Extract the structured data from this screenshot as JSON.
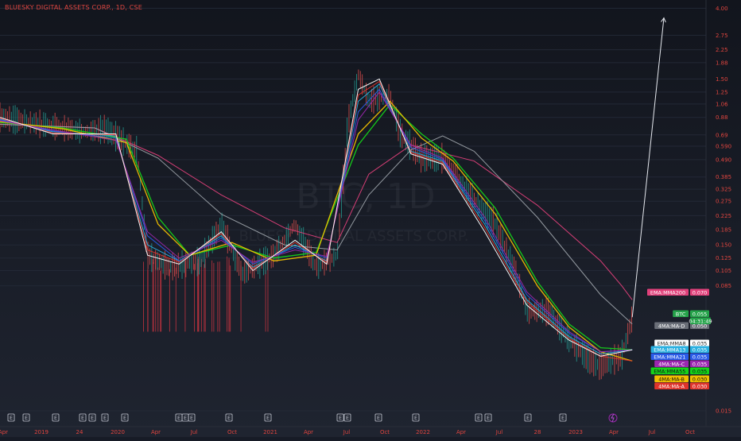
{
  "header": {
    "title": "BLUESKY DIGITAL ASSETS CORP., 1D, CSE"
  },
  "watermark": {
    "symbol": "BTC, 1D",
    "name": "BLUESKY DIGITAL ASSETS CORP."
  },
  "colors": {
    "background": "#171b26",
    "axis_text": "#e0453f",
    "ema8": "#ffffff",
    "ema13": "#2ab0e0",
    "ema21": "#2a5be8",
    "ma_c": "#9c27b0",
    "ema55": "#15d21a",
    "ma_b": "#f0c000",
    "ma_a": "#e0342c",
    "ema200": "#e0407a",
    "ma_d": "#9aa0a6",
    "price": "#25a34a",
    "projection": "#e6e9ef"
  },
  "chart_data": {
    "type": "line",
    "title": "BLUESKY DIGITAL ASSETS CORP., 1D, CSE",
    "y_scale": "log",
    "ylim": [
      0.013,
      4.2
    ],
    "y_ticks": [
      "4.00",
      "2.75",
      "2.25",
      "1.88",
      "1.50",
      "1.25",
      "1.06",
      "0.88",
      "0.69",
      "0.590",
      "0.490",
      "0.385",
      "0.325",
      "0.275",
      "0.225",
      "0.185",
      "0.150",
      "0.125",
      "0.105",
      "0.085",
      "0.015"
    ],
    "x_ticks": [
      "Apr",
      "2019",
      "Jul",
      "2020",
      "Apr",
      "Jul",
      "Oct",
      "2021",
      "Apr",
      "Jul",
      "Oct",
      "2022",
      "Apr",
      "Jul",
      "Oct",
      "2023",
      "Apr",
      "Jul",
      "Oct"
    ],
    "x_ticks_shown": [
      "Apr",
      "2019",
      "24",
      "2020",
      "Apr",
      "Jul",
      "Oct",
      "2021",
      "Apr",
      "Jul",
      "Oct",
      "2022",
      "Apr",
      "Jul",
      "28",
      "2023",
      "Apr",
      "Jul",
      "Oct"
    ],
    "x_range": [
      "2018-04",
      "2023-11"
    ],
    "series": [
      {
        "name": "EMA:MMA200",
        "value": "0.070",
        "key": "ema200",
        "points": [
          [
            "2018-04",
            0.8
          ],
          [
            "2019-01",
            0.76
          ],
          [
            "2019-07",
            0.52
          ],
          [
            "2020-01",
            0.3
          ],
          [
            "2020-07",
            0.19
          ],
          [
            "2020-12",
            0.155
          ],
          [
            "2021-03",
            0.4
          ],
          [
            "2021-07",
            0.6
          ],
          [
            "2022-01",
            0.48
          ],
          [
            "2022-07",
            0.26
          ],
          [
            "2023-01",
            0.12
          ],
          [
            "2023-03",
            0.085
          ],
          [
            "2023-04",
            0.07
          ]
        ]
      },
      {
        "name": "4MA:MA-D",
        "value": "0.050",
        "key": "ma_d",
        "points": [
          [
            "2018-04",
            0.8
          ],
          [
            "2019-01",
            0.76
          ],
          [
            "2019-07",
            0.5
          ],
          [
            "2020-01",
            0.23
          ],
          [
            "2020-07",
            0.15
          ],
          [
            "2020-12",
            0.14
          ],
          [
            "2021-03",
            0.3
          ],
          [
            "2021-07",
            0.56
          ],
          [
            "2021-10",
            0.68
          ],
          [
            "2022-01",
            0.55
          ],
          [
            "2022-07",
            0.22
          ],
          [
            "2023-01",
            0.075
          ],
          [
            "2023-04",
            0.05
          ]
        ]
      },
      {
        "name": "EMA:MMA55",
        "value": "0.035",
        "key": "ema55",
        "points": [
          [
            "2018-04",
            0.82
          ],
          [
            "2018-10",
            0.76
          ],
          [
            "2019-04",
            0.65
          ],
          [
            "2019-07",
            0.22
          ],
          [
            "2019-10",
            0.13
          ],
          [
            "2020-02",
            0.15
          ],
          [
            "2020-06",
            0.125
          ],
          [
            "2020-10",
            0.135
          ],
          [
            "2021-02",
            0.6
          ],
          [
            "2021-05",
            1.05
          ],
          [
            "2021-08",
            0.7
          ],
          [
            "2021-11",
            0.5
          ],
          [
            "2022-03",
            0.25
          ],
          [
            "2022-07",
            0.09
          ],
          [
            "2022-10",
            0.05
          ],
          [
            "2023-01",
            0.036
          ],
          [
            "2023-04",
            0.035
          ]
        ]
      },
      {
        "name": "4MA:MA-B",
        "value": "0.030",
        "key": "ma_b",
        "points": [
          [
            "2018-04",
            0.83
          ],
          [
            "2018-10",
            0.75
          ],
          [
            "2019-04",
            0.62
          ],
          [
            "2019-07",
            0.2
          ],
          [
            "2019-10",
            0.13
          ],
          [
            "2020-02",
            0.155
          ],
          [
            "2020-06",
            0.12
          ],
          [
            "2020-10",
            0.13
          ],
          [
            "2021-02",
            0.7
          ],
          [
            "2021-05",
            1.1
          ],
          [
            "2021-08",
            0.66
          ],
          [
            "2021-11",
            0.48
          ],
          [
            "2022-03",
            0.23
          ],
          [
            "2022-07",
            0.085
          ],
          [
            "2022-10",
            0.048
          ],
          [
            "2023-01",
            0.034
          ],
          [
            "2023-04",
            0.03
          ]
        ]
      },
      {
        "name": "EMA:MMA13",
        "value": "0.035",
        "key": "ema13",
        "points": [
          [
            "2018-04",
            0.86
          ],
          [
            "2018-09",
            0.72
          ],
          [
            "2019-03",
            0.68
          ],
          [
            "2019-06",
            0.15
          ],
          [
            "2019-09",
            0.12
          ],
          [
            "2020-01",
            0.17
          ],
          [
            "2020-04",
            0.11
          ],
          [
            "2020-08",
            0.15
          ],
          [
            "2020-11",
            0.12
          ],
          [
            "2021-02",
            1.1
          ],
          [
            "2021-04",
            1.4
          ],
          [
            "2021-07",
            0.55
          ],
          [
            "2021-10",
            0.48
          ],
          [
            "2022-02",
            0.2
          ],
          [
            "2022-06",
            0.07
          ],
          [
            "2022-10",
            0.042
          ],
          [
            "2023-01",
            0.033
          ],
          [
            "2023-04",
            0.035
          ]
        ]
      },
      {
        "name": "EMA:MMA21",
        "value": "0.035",
        "key": "ema21",
        "points": [
          [
            "2018-04",
            0.85
          ],
          [
            "2018-09",
            0.73
          ],
          [
            "2019-03",
            0.66
          ],
          [
            "2019-06",
            0.17
          ],
          [
            "2019-09",
            0.12
          ],
          [
            "2020-01",
            0.165
          ],
          [
            "2020-04",
            0.115
          ],
          [
            "2020-08",
            0.145
          ],
          [
            "2020-11",
            0.125
          ],
          [
            "2021-02",
            0.95
          ],
          [
            "2021-04",
            1.3
          ],
          [
            "2021-07",
            0.58
          ],
          [
            "2021-10",
            0.49
          ],
          [
            "2022-02",
            0.21
          ],
          [
            "2022-06",
            0.075
          ],
          [
            "2022-10",
            0.044
          ],
          [
            "2023-01",
            0.034
          ],
          [
            "2023-04",
            0.035
          ]
        ]
      },
      {
        "name": "4MA:MA-C",
        "value": "0.035",
        "key": "ma_c",
        "points": [
          [
            "2018-04",
            0.84
          ],
          [
            "2018-09",
            0.74
          ],
          [
            "2019-03",
            0.64
          ],
          [
            "2019-06",
            0.18
          ],
          [
            "2019-09",
            0.125
          ],
          [
            "2020-01",
            0.16
          ],
          [
            "2020-04",
            0.118
          ],
          [
            "2020-08",
            0.14
          ],
          [
            "2020-11",
            0.128
          ],
          [
            "2021-02",
            0.85
          ],
          [
            "2021-04",
            1.25
          ],
          [
            "2021-07",
            0.6
          ],
          [
            "2021-10",
            0.5
          ],
          [
            "2022-02",
            0.22
          ],
          [
            "2022-06",
            0.078
          ],
          [
            "2022-10",
            0.045
          ],
          [
            "2023-01",
            0.034
          ],
          [
            "2023-04",
            0.035
          ]
        ]
      },
      {
        "name": "4MA:MA-A",
        "value": "0.030",
        "key": "ma_a",
        "points": [
          [
            "2018-04",
            0.87
          ],
          [
            "2018-09",
            0.71
          ],
          [
            "2019-03",
            0.69
          ],
          [
            "2019-06",
            0.14
          ],
          [
            "2019-09",
            0.118
          ],
          [
            "2020-01",
            0.175
          ],
          [
            "2020-04",
            0.108
          ],
          [
            "2020-08",
            0.155
          ],
          [
            "2020-11",
            0.118
          ],
          [
            "2021-02",
            1.2
          ],
          [
            "2021-04",
            1.45
          ],
          [
            "2021-07",
            0.54
          ],
          [
            "2021-10",
            0.47
          ],
          [
            "2022-02",
            0.19
          ],
          [
            "2022-06",
            0.068
          ],
          [
            "2022-10",
            0.041
          ],
          [
            "2023-01",
            0.032
          ],
          [
            "2023-04",
            0.03
          ]
        ]
      },
      {
        "name": "EMA:MMA8",
        "value": "0.035",
        "key": "ema8",
        "points": [
          [
            "2018-04",
            0.88
          ],
          [
            "2018-09",
            0.7
          ],
          [
            "2019-03",
            0.7
          ],
          [
            "2019-06",
            0.13
          ],
          [
            "2019-09",
            0.115
          ],
          [
            "2020-01",
            0.18
          ],
          [
            "2020-04",
            0.105
          ],
          [
            "2020-08",
            0.16
          ],
          [
            "2020-11",
            0.115
          ],
          [
            "2021-02",
            1.3
          ],
          [
            "2021-04",
            1.5
          ],
          [
            "2021-07",
            0.53
          ],
          [
            "2021-10",
            0.46
          ],
          [
            "2022-02",
            0.18
          ],
          [
            "2022-06",
            0.065
          ],
          [
            "2022-10",
            0.04
          ],
          [
            "2023-01",
            0.032
          ],
          [
            "2023-04",
            0.035
          ]
        ]
      }
    ],
    "price": {
      "name": "BTC",
      "last": "0.055",
      "countdown": "04:31:49",
      "points": [
        [
          "2018-04",
          0.88
        ],
        [
          "2018-08",
          0.8
        ],
        [
          "2018-12",
          0.72
        ],
        [
          "2019-02",
          0.75
        ],
        [
          "2019-05",
          0.55
        ],
        [
          "2019-06",
          0.13
        ],
        [
          "2019-08",
          0.11
        ],
        [
          "2019-11",
          0.12
        ],
        [
          "2020-01",
          0.2
        ],
        [
          "2020-03",
          0.1
        ],
        [
          "2020-06",
          0.13
        ],
        [
          "2020-08",
          0.2
        ],
        [
          "2020-10",
          0.11
        ],
        [
          "2020-12",
          0.13
        ],
        [
          "2021-01",
          0.8
        ],
        [
          "2021-02",
          1.6
        ],
        [
          "2021-03",
          1.1
        ],
        [
          "2021-05",
          1.2
        ],
        [
          "2021-06",
          0.7
        ],
        [
          "2021-08",
          0.5
        ],
        [
          "2021-10",
          0.5
        ],
        [
          "2021-11",
          0.42
        ],
        [
          "2022-01",
          0.28
        ],
        [
          "2022-03",
          0.2
        ],
        [
          "2022-05",
          0.1
        ],
        [
          "2022-06",
          0.06
        ],
        [
          "2022-08",
          0.06
        ],
        [
          "2022-10",
          0.04
        ],
        [
          "2022-12",
          0.03
        ],
        [
          "2023-01",
          0.028
        ],
        [
          "2023-03",
          0.032
        ],
        [
          "2023-04",
          0.055
        ]
      ]
    },
    "projection": {
      "from": [
        "2023-04",
        0.055
      ],
      "to": [
        "2023-07",
        3.5
      ]
    },
    "volume_spike_zone": [
      "2019-05",
      "2020-06"
    ],
    "events_visible": 20,
    "event_label": "E"
  },
  "legend": {
    "ema200_label": "EMA:MMA200",
    "ema200_value": "0.070",
    "price_label": "BTC",
    "price_value": "0.055",
    "price_countdown": "04:31:49",
    "ma_d_label": "4MA:MA-D",
    "ma_d_value": "0.050",
    "ema8_label": "EMA:MMA8",
    "ema8_value": "0.035",
    "ema13_label": "EMA:MMA13",
    "ema13_value": "0.035",
    "ema21_label": "EMA:MMA21",
    "ema21_value": "0.035",
    "ma_c_label": "4MA:MA-C",
    "ma_c_value": "0.035",
    "ema55_label": "EMA:MMA55",
    "ema55_value": "0.035",
    "ma_b_label": "4MA:MA-B",
    "ma_b_value": "0.030",
    "ma_a_label": "4MA:MA-A",
    "ma_a_value": "0.030"
  }
}
